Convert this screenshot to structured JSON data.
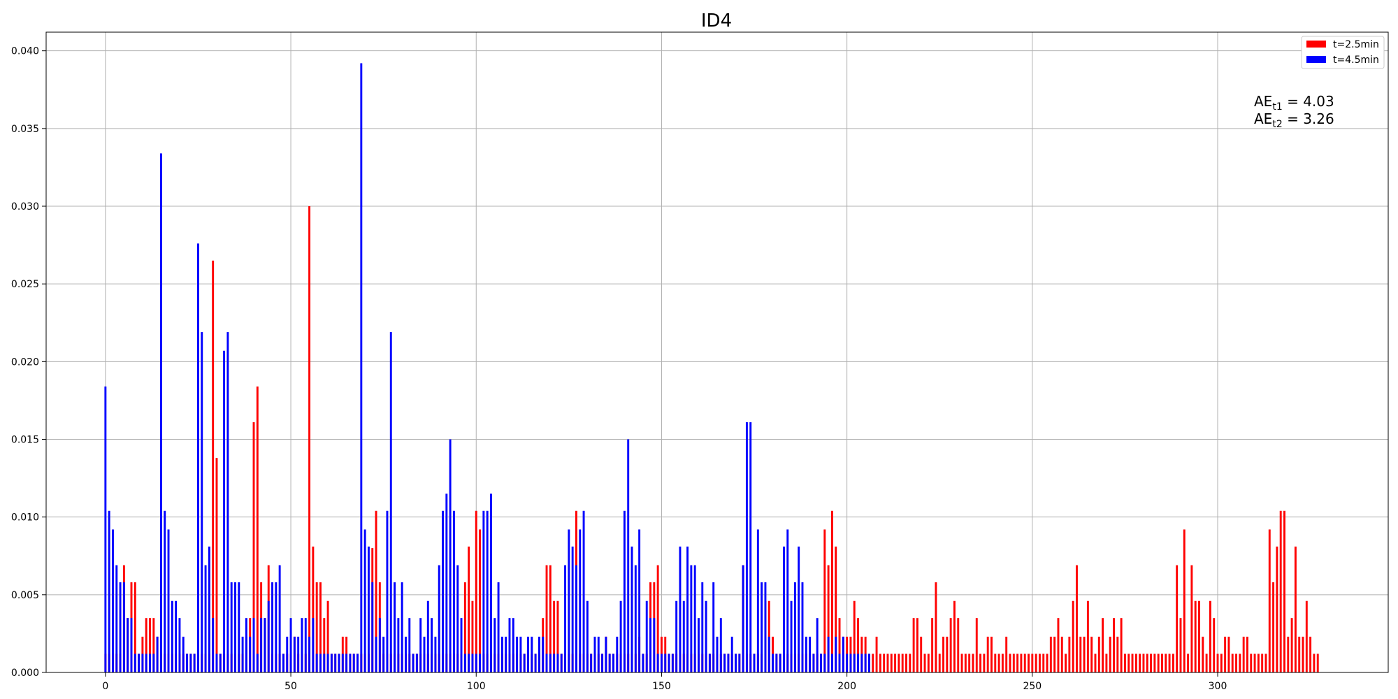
{
  "chart_data": {
    "type": "bar",
    "title": "ID4",
    "xlabel": "",
    "ylabel": "",
    "xlim": [
      -16,
      346
    ],
    "ylim": [
      0,
      0.0412
    ],
    "x_ticks": [
      0,
      50,
      100,
      150,
      200,
      250,
      300
    ],
    "y_ticks": [
      0.0,
      0.005,
      0.01,
      0.015,
      0.02,
      0.025,
      0.03,
      0.035,
      0.04
    ],
    "y_tick_labels": [
      "0.000",
      "0.005",
      "0.010",
      "0.015",
      "0.020",
      "0.025",
      "0.030",
      "0.035",
      "0.040"
    ],
    "grid": true,
    "legend_position": "top-right",
    "annotations": [
      {
        "base": "AE",
        "sub": "t1",
        "rest": " = 4.03"
      },
      {
        "base": "AE",
        "sub": "t2",
        "rest": " = 3.26"
      }
    ],
    "series": [
      {
        "name": "t=2.5min",
        "color": "#ff0000",
        "values": [
          0.0012,
          0.0012,
          0.0012,
          0.0012,
          0.0012,
          0.0069,
          0.0035,
          0.0058,
          0.0058,
          0.0012,
          0.0023,
          0.0035,
          0.0035,
          0.0035,
          0.0023,
          0.0012,
          0.0012,
          0.0012,
          0.0012,
          0.0012,
          0.0012,
          0.0012,
          0.0012,
          0.0012,
          0.0012,
          0.0012,
          0.0012,
          0.0012,
          0.0012,
          0.0265,
          0.0138,
          0.0012,
          0.0012,
          0.0012,
          0.0012,
          0.0012,
          0.0012,
          0.0012,
          0.0023,
          0.0035,
          0.0161,
          0.0184,
          0.0058,
          0.0035,
          0.0069,
          0.0012,
          0.0012,
          0.0012,
          0.0012,
          0.0012,
          0.0012,
          0.0023,
          0.0012,
          0.0012,
          0.0012,
          0.03,
          0.0081,
          0.0058,
          0.0058,
          0.0035,
          0.0046,
          0.0012,
          0.0012,
          0.0012,
          0.0023,
          0.0023,
          0.0012,
          0.0012,
          0.0012,
          0.0012,
          0.0012,
          0.0012,
          0.008,
          0.0104,
          0.0058,
          0.0012,
          0.0012,
          0.0012,
          0.0012,
          0.0012,
          0.0012,
          0.0012,
          0.0012,
          0.0012,
          0.0012,
          0.0012,
          0.0012,
          0.0012,
          0.0012,
          0.0012,
          0.0012,
          0.0012,
          0.0012,
          0.0012,
          0.0012,
          0.0012,
          0.0012,
          0.0058,
          0.0081,
          0.0046,
          0.0104,
          0.0092,
          0.0012,
          0.0012,
          0.0012,
          0.0012,
          0.0012,
          0.0012,
          0.0012,
          0.0012,
          0.0012,
          0.0012,
          0.0012,
          0.0012,
          0.0012,
          0.0012,
          0.0012,
          0.0012,
          0.0035,
          0.0069,
          0.0069,
          0.0046,
          0.0046,
          0.0012,
          0.0012,
          0.0012,
          0.0012,
          0.0104,
          0.0012,
          0.0012,
          0.0012,
          0.0012,
          0.0012,
          0.0012,
          0.0012,
          0.0023,
          0.0012,
          0.0012,
          0.0012,
          0.0012,
          0.0012,
          0.0012,
          0.0012,
          0.0012,
          0.0023,
          0.0012,
          0.0012,
          0.0058,
          0.0058,
          0.0069,
          0.0023,
          0.0023,
          0.0012,
          0.0012,
          0.0012,
          0.0012,
          0.0012,
          0.0012,
          0.0012,
          0.0012,
          0.0012,
          0.0012,
          0.0012,
          0.0012,
          0.0012,
          0.0012,
          0.0012,
          0.0012,
          0.0012,
          0.0012,
          0.0012,
          0.0012,
          0.0069,
          0.0012,
          0.0012,
          0.0012,
          0.0012,
          0.0012,
          0.0046,
          0.0046,
          0.0023,
          0.0012,
          0.0012,
          0.0012,
          0.0012,
          0.0012,
          0.0012,
          0.0012,
          0.0012,
          0.0012,
          0.0012,
          0.0012,
          0.0012,
          0.0012,
          0.0092,
          0.0069,
          0.0104,
          0.0081,
          0.0035,
          0.0023,
          0.0023,
          0.0023,
          0.0046,
          0.0035,
          0.0023,
          0.0023,
          0.0012,
          0.0012,
          0.0023,
          0.0012,
          0.0012,
          0.0012,
          0.0012,
          0.0012,
          0.0012,
          0.0012,
          0.0012,
          0.0012,
          0.0035,
          0.0035,
          0.0023,
          0.0012,
          0.0012,
          0.0035,
          0.0058,
          0.0012,
          0.0023,
          0.0023,
          0.0035,
          0.0046,
          0.0035,
          0.0012,
          0.0012,
          0.0012,
          0.0012,
          0.0035,
          0.0012,
          0.0012,
          0.0023,
          0.0023,
          0.0012,
          0.0012,
          0.0012,
          0.0023,
          0.0012,
          0.0012,
          0.0012,
          0.0012,
          0.0012,
          0.0012,
          0.0012,
          0.0012,
          0.0012,
          0.0012,
          0.0012,
          0.0023,
          0.0023,
          0.0035,
          0.0023,
          0.0012,
          0.0023,
          0.0046,
          0.0069,
          0.0023,
          0.0023,
          0.0046,
          0.0023,
          0.0012,
          0.0023,
          0.0035,
          0.0012,
          0.0023,
          0.0035,
          0.0023,
          0.0035,
          0.0012,
          0.0012,
          0.0012,
          0.0012,
          0.0012,
          0.0012,
          0.0012,
          0.0012,
          0.0012,
          0.0012,
          0.0012,
          0.0012,
          0.0012,
          0.0012,
          0.0069,
          0.0035,
          0.0092,
          0.0012,
          0.0069,
          0.0046,
          0.0046,
          0.0023,
          0.0012,
          0.0046,
          0.0035,
          0.0012,
          0.0012,
          0.0023,
          0.0023,
          0.0012,
          0.0012,
          0.0012,
          0.0023,
          0.0023,
          0.0012,
          0.0012,
          0.0012,
          0.0012,
          0.0012,
          0.0092,
          0.0058,
          0.0081,
          0.0104,
          0.0104,
          0.0023,
          0.0035,
          0.0081,
          0.0023,
          0.0023,
          0.0046,
          0.0023,
          0.0012,
          0.0012
        ]
      },
      {
        "name": "t=4.5min",
        "color": "#0000ff",
        "values": [
          0.0184,
          0.0104,
          0.0092,
          0.0069,
          0.0058,
          0.0058,
          0.0035,
          0.0035,
          0.0012,
          0.0012,
          0.0012,
          0.0012,
          0.0012,
          0.0012,
          0.0023,
          0.0334,
          0.0104,
          0.0092,
          0.0046,
          0.0046,
          0.0035,
          0.0023,
          0.0012,
          0.0012,
          0.0012,
          0.0276,
          0.0219,
          0.0069,
          0.0081,
          0.0035,
          0.0012,
          0.0012,
          0.0207,
          0.0219,
          0.0058,
          0.0058,
          0.0058,
          0.0023,
          0.0035,
          0.0023,
          0.0035,
          0.0012,
          0.0035,
          0.0035,
          0.0046,
          0.0058,
          0.0058,
          0.0069,
          0.0012,
          0.0023,
          0.0035,
          0.0023,
          0.0023,
          0.0035,
          0.0035,
          0.0023,
          0.0035,
          0.0012,
          0.0012,
          0.0012,
          0.0012,
          0.0012,
          0.0012,
          0.0012,
          0.0012,
          0.0012,
          0.0012,
          0.0012,
          0.0012,
          0.0392,
          0.0092,
          0.0081,
          0.0058,
          0.0023,
          0.0035,
          0.0023,
          0.0104,
          0.0219,
          0.0058,
          0.0035,
          0.0058,
          0.0023,
          0.0035,
          0.0012,
          0.0012,
          0.0035,
          0.0023,
          0.0046,
          0.0035,
          0.0023,
          0.0069,
          0.0104,
          0.0115,
          0.015,
          0.0104,
          0.0069,
          0.0035,
          0.0012,
          0.0012,
          0.0012,
          0.0012,
          0.0012,
          0.0104,
          0.0104,
          0.0115,
          0.0035,
          0.0058,
          0.0023,
          0.0023,
          0.0035,
          0.0035,
          0.0023,
          0.0023,
          0.0012,
          0.0023,
          0.0023,
          0.0012,
          0.0023,
          0.0023,
          0.0012,
          0.0012,
          0.0012,
          0.0012,
          0.0012,
          0.0069,
          0.0092,
          0.0081,
          0.0069,
          0.0092,
          0.0104,
          0.0046,
          0.0012,
          0.0023,
          0.0023,
          0.0012,
          0.0023,
          0.0012,
          0.0012,
          0.0023,
          0.0046,
          0.0104,
          0.015,
          0.0081,
          0.0069,
          0.0092,
          0.0012,
          0.0046,
          0.0035,
          0.0035,
          0.0012,
          0.0012,
          0.0012,
          0.0012,
          0.0012,
          0.0046,
          0.0081,
          0.0046,
          0.0081,
          0.0069,
          0.0069,
          0.0035,
          0.0058,
          0.0046,
          0.0012,
          0.0058,
          0.0023,
          0.0035,
          0.0012,
          0.0012,
          0.0023,
          0.0012,
          0.0012,
          0.0069,
          0.0161,
          0.0161,
          0.0012,
          0.0092,
          0.0058,
          0.0058,
          0.0023,
          0.0012,
          0.0012,
          0.0012,
          0.0081,
          0.0092,
          0.0046,
          0.0058,
          0.0081,
          0.0058,
          0.0023,
          0.0023,
          0.0012,
          0.0035,
          0.0012,
          0.0012,
          0.0023,
          0.0012,
          0.0023,
          0.0012,
          0.0023,
          0.0012,
          0.0012,
          0.0012,
          0.0012,
          0.0012,
          0.0012,
          0.0012
        ]
      }
    ]
  }
}
